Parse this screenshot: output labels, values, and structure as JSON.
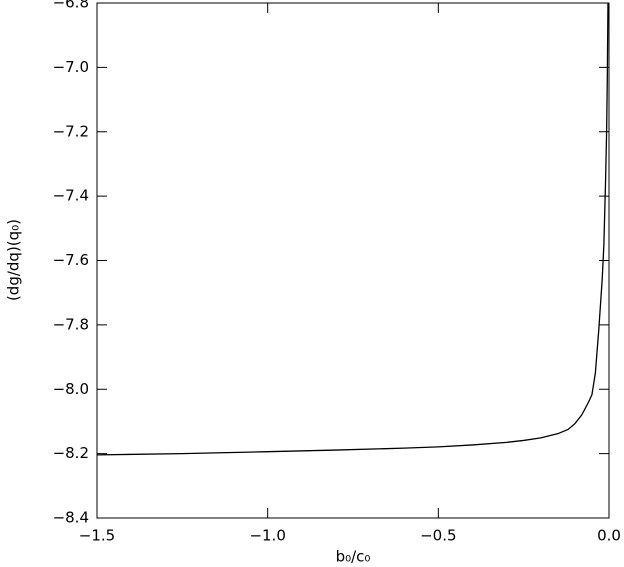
{
  "chart_data": {
    "type": "line",
    "xlabel": "b₀/c₀",
    "ylabel": "(dg/dq)(q₀)",
    "x": [
      -1.5,
      -1.25,
      -1.0,
      -0.8,
      -0.6,
      -0.5,
      -0.4,
      -0.3,
      -0.25,
      -0.2,
      -0.15,
      -0.12,
      -0.1,
      -0.08,
      -0.06,
      -0.05,
      -0.04,
      -0.03,
      -0.02,
      -0.015,
      -0.01,
      -0.007,
      -0.005,
      -0.003
    ],
    "values": [
      -8.204,
      -8.2,
      -8.194,
      -8.189,
      -8.183,
      -8.179,
      -8.173,
      -8.165,
      -8.159,
      -8.151,
      -8.138,
      -8.125,
      -8.107,
      -8.08,
      -8.04,
      -8.017,
      -7.95,
      -7.816,
      -7.66,
      -7.55,
      -7.35,
      -7.2,
      -7.04,
      -6.8
    ],
    "color": "#000000",
    "xlim": [
      -1.5,
      0.0
    ],
    "ylim": [
      -8.4,
      -6.8
    ],
    "xticks": [
      {
        "value": -1.5,
        "label": "−1.5"
      },
      {
        "value": -1.0,
        "label": "−1.0"
      },
      {
        "value": -0.5,
        "label": "−0.5"
      },
      {
        "value": 0.0,
        "label": "0.0"
      }
    ],
    "yticks": [
      {
        "value": -8.4,
        "label": "−8.4"
      },
      {
        "value": -8.2,
        "label": "−8.2"
      },
      {
        "value": -8.0,
        "label": "−8.0"
      },
      {
        "value": -7.8,
        "label": "−7.8"
      },
      {
        "value": -7.6,
        "label": "−7.6"
      },
      {
        "value": -7.4,
        "label": "−7.4"
      },
      {
        "value": -7.2,
        "label": "−7.2"
      },
      {
        "value": -7.0,
        "label": "−7.0"
      },
      {
        "value": -6.8,
        "label": "−6.8"
      }
    ]
  }
}
